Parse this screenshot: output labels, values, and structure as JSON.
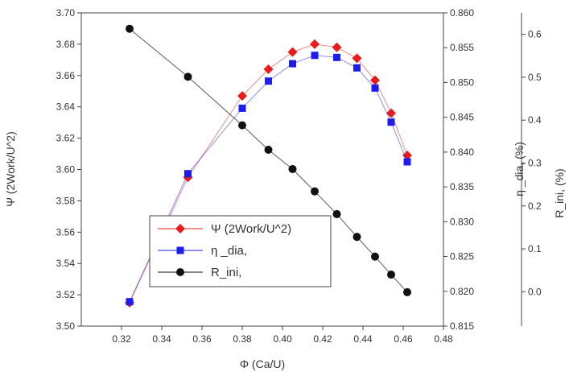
{
  "chart_data": {
    "type": "line",
    "x_axis": {
      "label": "Φ  (Ca/U)",
      "range": [
        0.3,
        0.48
      ],
      "ticks": [
        "0.32",
        "0.34",
        "0.36",
        "0.38",
        "0.40",
        "0.42",
        "0.44",
        "0.46",
        "0.48"
      ]
    },
    "y_axes": {
      "left": {
        "label": "Ψ (2Work/U^2)",
        "range": [
          3.5,
          3.7
        ],
        "ticks": [
          "3.50",
          "3.52",
          "3.54",
          "3.56",
          "3.58",
          "3.60",
          "3.62",
          "3.64",
          "3.66",
          "3.68",
          "3.70"
        ]
      },
      "right1": {
        "label": "η _dia, (%)",
        "range": [
          0.815,
          0.86
        ],
        "ticks": [
          "0.815",
          "0.820",
          "0.825",
          "0.830",
          "0.835",
          "0.840",
          "0.845",
          "0.850",
          "0.855",
          "0.860"
        ]
      },
      "right2": {
        "label": "R_ini, (%)",
        "range": [
          -0.08,
          0.65
        ],
        "ticks": [
          "0.0",
          "0.1",
          "0.2",
          "0.3",
          "0.4",
          "0.5",
          "0.6"
        ]
      }
    },
    "x": [
      0.324,
      0.353,
      0.38,
      0.393,
      0.405,
      0.416,
      0.427,
      0.437,
      0.446,
      0.454,
      0.462
    ],
    "series": [
      {
        "name": "Ψ (2Work/U^2)",
        "axis": "left",
        "color": "#e81c1c",
        "marker": "diamond",
        "values": [
          3.515,
          3.595,
          3.647,
          3.664,
          3.675,
          3.68,
          3.678,
          3.671,
          3.657,
          3.636,
          3.609
        ]
      },
      {
        "name": "η _dia,",
        "axis": "right1",
        "color": "#1c1cf0",
        "marker": "square",
        "values": [
          0.8185,
          0.8369,
          0.8463,
          0.8502,
          0.8527,
          0.8539,
          0.8536,
          0.8521,
          0.8492,
          0.8443,
          0.8386
        ]
      },
      {
        "name": "R_ini,",
        "axis": "right2",
        "color": "#111111",
        "marker": "circle",
        "values": [
          0.613,
          0.501,
          0.388,
          0.331,
          0.286,
          0.234,
          0.181,
          0.128,
          0.082,
          0.04,
          -0.001
        ]
      }
    ],
    "legend": {
      "position": "lower-left inside plot",
      "entries": [
        "Ψ (2Work/U^2)",
        "η _dia,",
        "R_ini,"
      ]
    },
    "grid": false
  }
}
